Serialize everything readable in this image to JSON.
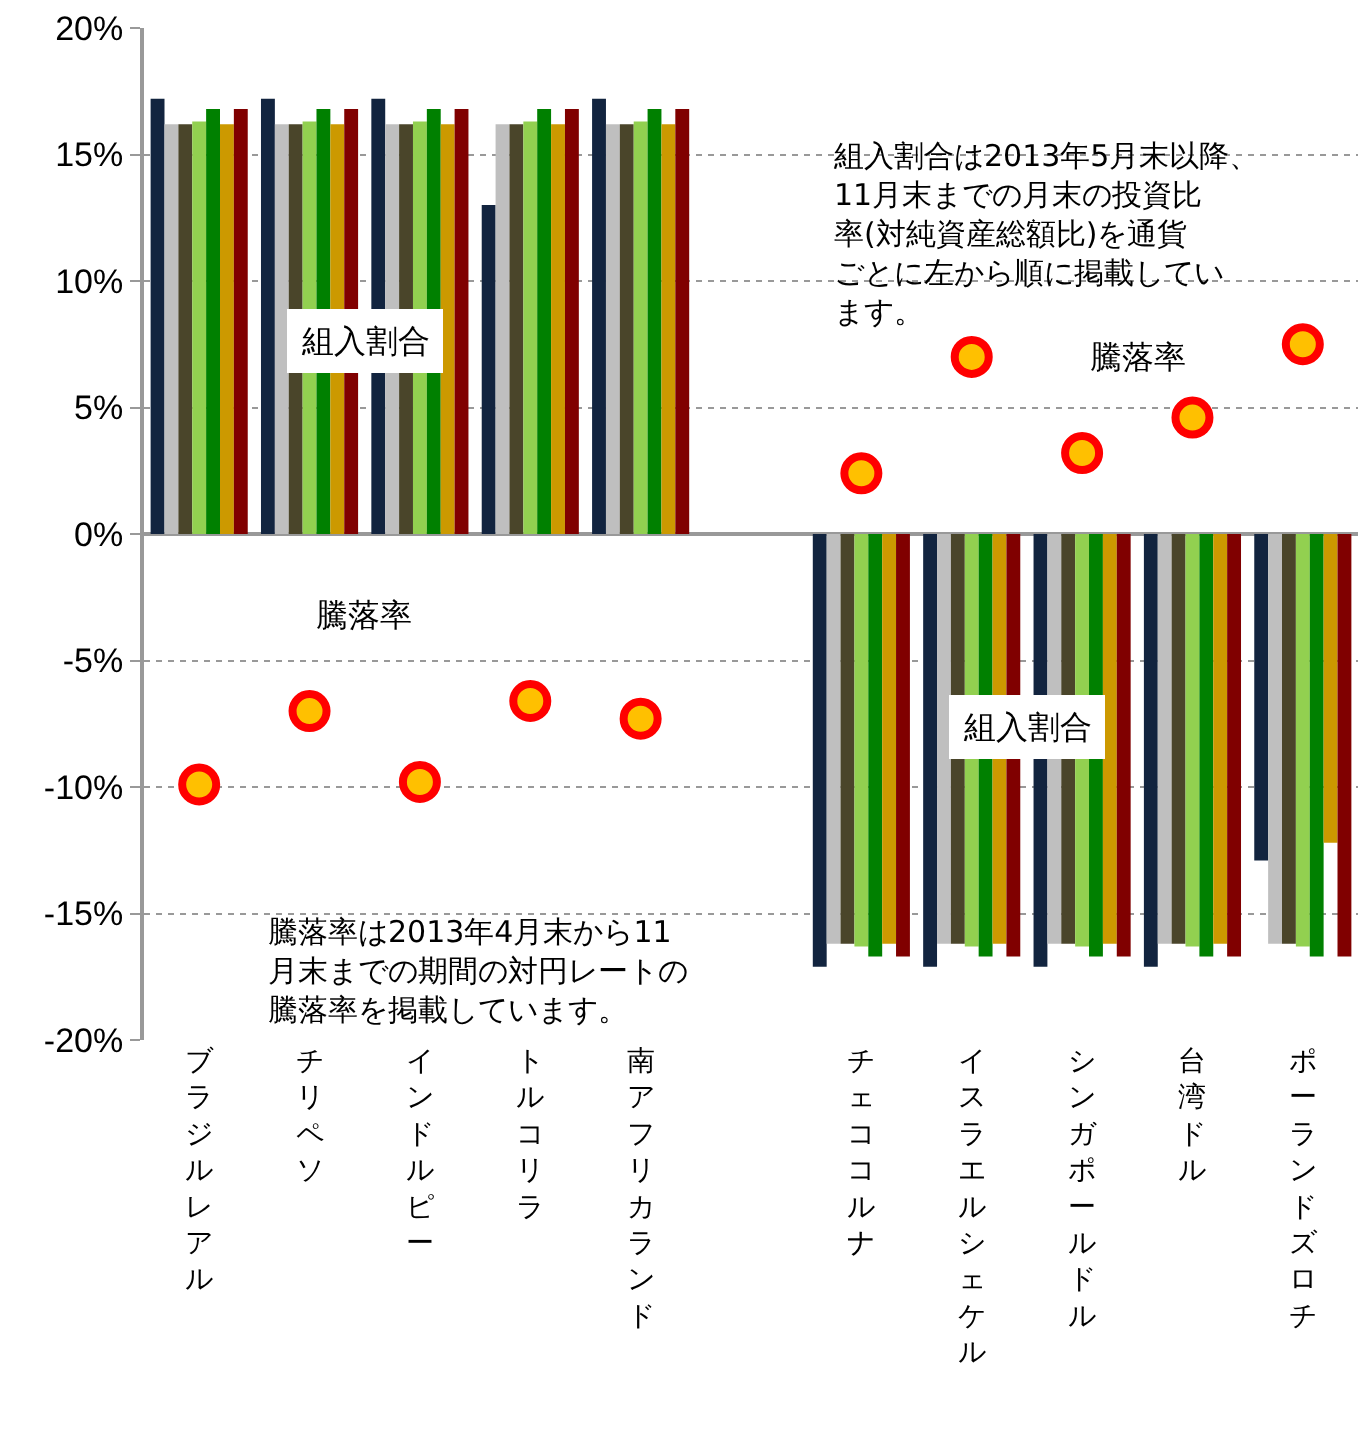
{
  "chart_data": {
    "type": "bar",
    "categories": [
      "ブラジルレアル",
      "チリペソ",
      "インドルピー",
      "トルコリラ",
      "南アフリカランド",
      null,
      "チェココルナ",
      "イスラエルシェケル",
      "シンガポールドル",
      "台湾ドル",
      "ポーランドズロチ"
    ],
    "series": [
      {
        "color": "#12243f",
        "values": [
          17.2,
          17.2,
          17.2,
          13.0,
          17.2,
          null,
          -17.1,
          -17.1,
          -17.1,
          -17.1,
          -12.9
        ]
      },
      {
        "color": "#bfbfbf",
        "values": [
          16.2,
          16.2,
          16.2,
          16.2,
          16.2,
          null,
          -16.2,
          -16.2,
          -16.2,
          -16.2,
          -16.2
        ]
      },
      {
        "color": "#4a452a",
        "values": [
          16.2,
          16.2,
          16.2,
          16.2,
          16.2,
          null,
          -16.2,
          -16.2,
          -16.2,
          -16.2,
          -16.2
        ]
      },
      {
        "color": "#92d050",
        "values": [
          16.3,
          16.3,
          16.3,
          16.3,
          16.3,
          null,
          -16.3,
          -16.3,
          -16.3,
          -16.3,
          -16.3
        ]
      },
      {
        "color": "#008000",
        "values": [
          16.8,
          16.8,
          16.8,
          16.8,
          16.8,
          null,
          -16.7,
          -16.7,
          -16.7,
          -16.7,
          -16.7
        ]
      },
      {
        "color": "#cc9900",
        "values": [
          16.2,
          16.2,
          16.2,
          16.2,
          16.2,
          null,
          -16.2,
          -16.2,
          -16.2,
          -16.2,
          -12.2
        ]
      },
      {
        "color": "#800000",
        "values": [
          16.8,
          16.8,
          16.8,
          16.8,
          16.8,
          null,
          -16.7,
          -16.7,
          -16.7,
          -16.7,
          -16.7
        ]
      },
      {
        "type": "scatter",
        "color": "#ffc000",
        "marker": "circle",
        "values": [
          -9.9,
          -7.0,
          -9.8,
          -6.6,
          -7.3,
          null,
          2.4,
          7.0,
          3.2,
          4.6,
          7.5
        ]
      }
    ],
    "ylim": [
      -20,
      20
    ],
    "yticks": [
      {
        "value": -20,
        "label": "-20%"
      },
      {
        "value": -15,
        "label": "-15%"
      },
      {
        "value": -10,
        "label": "-10%"
      },
      {
        "value": -5,
        "label": "-5%"
      },
      {
        "value": 0,
        "label": "0%"
      },
      {
        "value": 5,
        "label": "5%"
      },
      {
        "value": 10,
        "label": "10%"
      },
      {
        "value": 15,
        "label": "15%"
      },
      {
        "value": 20,
        "label": "20%"
      }
    ],
    "grid": "y",
    "annotations": [
      "組入割合",
      "組入割合",
      "騰落率",
      "騰落率",
      "組入割合は2013年5月末以降、11月末までの月末の投資比率(対純資産総額比)を通貨ごとに左から順に掲載しています。",
      "騰落率は2013年4月末から11月末までの期間の対円レートの騰落率を掲載しています。"
    ]
  }
}
